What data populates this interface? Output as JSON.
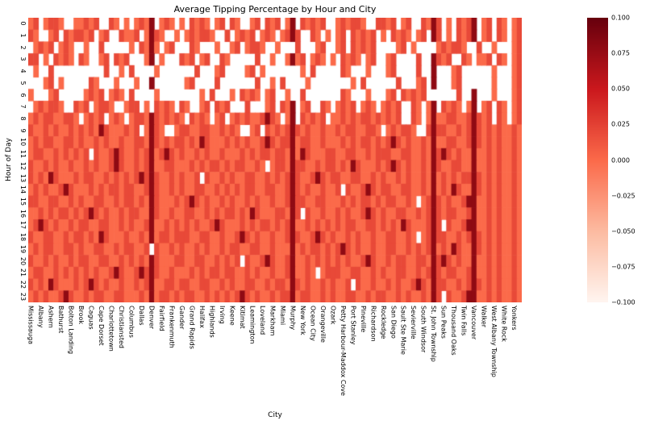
{
  "chart_data": {
    "type": "heatmap",
    "title": "Average Tipping Percentage by Hour and City",
    "xlabel": "City",
    "ylabel": "Hour of Day",
    "x_tick_labels": [
      "Mississauga",
      "Albany",
      "Ashern",
      "Bathurst",
      "Bolton Landing",
      "Brook",
      "Caguas",
      "Cape Dorset",
      "Charlottetown",
      "Christiansted",
      "Columbus",
      "Dallas",
      "Denver",
      "Fairfield",
      "Frankenmuth",
      "Gander",
      "Grand Rapids",
      "Halifax",
      "Highlands",
      "Irving",
      "Keene",
      "Kitimat",
      "Leamington",
      "Loveland",
      "Markham",
      "Miami",
      "Murphy",
      "New York",
      "Ocean City",
      "Orangeville",
      "Ozark",
      "Petty Harbour-Maddox Cove",
      "Port Stanley",
      "Pineville",
      "Richardson",
      "Rockledge",
      "San Diego",
      "Sault Ste Marie",
      "Sevierville",
      "South Windsor",
      "St. John Township",
      "Sun Peaks",
      "Thousand Oaks",
      "Twin Falls",
      "Vancouver",
      "Walker",
      "West Albany Township",
      "White Rock",
      "Yonkers"
    ],
    "y_tick_labels": [
      "0",
      "1",
      "2",
      "3",
      "4",
      "5",
      "6",
      "7",
      "8",
      "9",
      "10",
      "11",
      "12",
      "13",
      "14",
      "15",
      "16",
      "17",
      "18",
      "19",
      "20",
      "21",
      "22",
      "23"
    ],
    "colorbar": {
      "vmin": -0.1,
      "vmax": 0.1,
      "tick_labels": [
        "0.100",
        "0.075",
        "0.050",
        "0.025",
        "0.000",
        "−0.025",
        "−0.050",
        "−0.075",
        "−0.100"
      ],
      "colormap": "Reds",
      "colormap_stops": [
        [
          0,
          "#fff5f0"
        ],
        [
          0.25,
          "#fcbba1"
        ],
        [
          0.5,
          "#fb6a4a"
        ],
        [
          0.75,
          "#cb181d"
        ],
        [
          1,
          "#67000d"
        ]
      ]
    },
    "grid": {
      "num_cols": 98,
      "num_rows": 24,
      "label_every": 2,
      "cell_encoding": "char '.' = missing (white cell); digit d (1-9) = estimated value -0.1 + 0.02*d",
      "dark_columns": [
        24,
        52,
        80,
        88
      ],
      "rows": [
        [
          "56.5665..5",
          "5656..65.5",
          ".5656.565.",
          "5.6565.56.",
          "65..56.656",
          ".56.65656.",
          ".565665..6",
          "656.56..65",
          "66.5.6565.",
          "56.65.56"
        ],
        [
          "65..56.656",
          "656.56..65",
          "56.5665..5",
          ".565665..6",
          ".5656.565.",
          "5656..65.5",
          ".56.65656.",
          "5.6565.56.",
          "66.5.6565.",
          "56.65.56"
        ],
        [
          ".5656.565.",
          ".5..6.....",
          "5.6565.56.",
          "..65...5..",
          "56.5665..5",
          "...6...56.",
          ".56.65656.",
          "...56.5...",
          ".565665..6",
          "..5...56"
        ],
        [
          "66.5.6565.",
          "65..56.656",
          "...56.5...",
          "656.56..65",
          ".....6..5.",
          ".5656.565.",
          "5.6565.56.",
          ".56....6..",
          "5656..65.5",
          "56.65.56"
        ],
        [
          ".5..6.....",
          ".....6..5.",
          "6....5....",
          "...6...56.",
          "...56.5...",
          "....5.6...",
          "..65...5..",
          ".56....6..",
          "5...56....",
          "..5...56"
        ],
        [
          "...56.5...",
          "..65...5..",
          ".5..6.....",
          ".56....6..",
          ".....6..5.",
          "6....5....",
          "....5.6...",
          "...6...56.",
          "5...56....",
          "..5...56"
        ],
        [
          "5...56....",
          ".5656.565.",
          "6....5....",
          "....5.6...",
          "5.6565.56.",
          ".5..6.....",
          "..65...5..",
          ".56.65656.",
          ".....6..5.",
          "..5...56"
        ],
        [
          ".565665..6",
          "56.5665..5",
          "66.5.6565.",
          "65..56.656",
          "...6...56.",
          "656.56..65",
          ".5656.565.",
          "5656..65.5",
          "5.6565.56.",
          "56.65.56"
        ],
        [
          "5656655665",
          ".5656.565.",
          "5665565656",
          "5.6565.56.",
          "5656556965",
          ".56.65656.",
          "5565656656",
          "5656..65.5",
          "6556655656",
          "56.65.56"
        ],
        [
          "6556565565",
          "6565965556",
          "56.5665..5",
          "6655665565",
          "65..56.656",
          "5696565565",
          "5656655665",
          ".565665..6",
          "5665565656",
          "56565565"
        ],
        [
          "5656655665",
          "6556565565",
          "5665565656",
          "6565965556",
          "5656556965",
          "6655665565",
          "5565656656",
          "5696565565",
          "6556655656",
          "56565565"
        ],
        [
          "5665565656",
          "56.6556965",
          "5656556965",
          "6556565565",
          "5565656656",
          "6565965556",
          "6556655656",
          "6655665565",
          "5696565565",
          "56565565"
        ],
        [
          "6556565565",
          "5656556965",
          "5656655665",
          "5565656656",
          "5665565.56",
          "6556655656",
          "6565965556",
          "5696565565",
          "6655665565",
          "56565565"
        ],
        [
          "6565965556",
          "5665565656",
          "5696565565",
          "6556.65565",
          "6556655656",
          "5656556965",
          "6655665565",
          "6556565565",
          "5565656656",
          "56565565"
        ],
        [
          "5656556965",
          "5565656656",
          "6556565565",
          "6556655656",
          "5656655665",
          "5696565565",
          "56.6556965",
          "6655665565",
          "6565965556",
          "56565565"
        ],
        [
          "6655665565",
          "6556655656",
          "6565965556",
          "5696565565",
          "6556565565",
          "5656655665",
          "5565656656",
          "5665565.56",
          "5656556965",
          "56565565"
        ],
        [
          "5565656656",
          "5696565565",
          "6655665565",
          "5665565656",
          "6565965556",
          "6556.65565",
          "5656556965",
          "6556655656",
          "5656655665",
          "56565565"
        ],
        [
          "5696565565",
          "6655665565",
          "6556655656",
          "5656556965",
          "5565656656",
          "5665565656",
          "5656655665",
          "6565965556",
          "56.6556965",
          "56565565"
        ],
        [
          "6556655656",
          "6565965556",
          "5565656656",
          "6655665565",
          "5696565565",
          "5656556965",
          "6556565565",
          "5665565.56",
          "5665565656",
          "56565565"
        ],
        [
          "5656655665",
          "6556655656",
          "6556.65565",
          "6556565565",
          "6655665565",
          "5565656656",
          "5696565565",
          "5665565656",
          "6565965556",
          "56565565"
        ],
        [
          "6556565565",
          "6655665565",
          "6565965556",
          "6556655656",
          "56.6556965",
          "5665565656",
          "5656556965",
          "5656655665",
          "5696565565",
          "56565565"
        ],
        [
          "5665565656",
          "5656556965",
          "5696565565",
          "5565656656",
          "6556565565",
          "5665565.56",
          "6655665565",
          "6556655656",
          "5656655665",
          "56565565"
        ],
        [
          "6565965556",
          "5696565565",
          "5656655665",
          "6655665565",
          "6556655656",
          "6556565565",
          "6556.65565",
          "5656556965",
          "5665565656",
          "56565565"
        ],
        [
          "5656556965",
          "5656655665",
          "5565656656",
          "5665565656",
          "5696565565",
          "6655665565",
          "6556655656",
          "6556565565",
          "56.6556965",
          "56565565"
        ]
      ]
    }
  }
}
